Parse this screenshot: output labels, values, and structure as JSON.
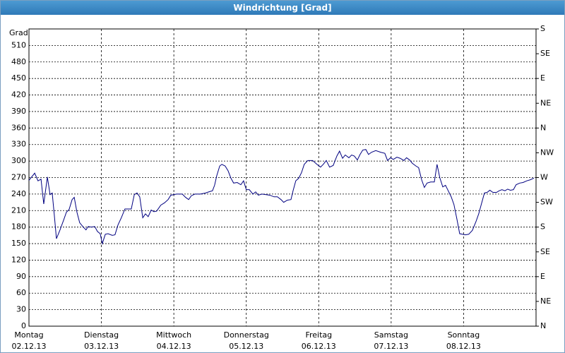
{
  "chart_data": {
    "type": "line",
    "title": "Windrichtung [Grad]",
    "y_label": "Grad",
    "xlim": [
      0,
      168
    ],
    "ylim": [
      0,
      540
    ],
    "y2lim": [
      0,
      540
    ],
    "grid": true,
    "color": "#000080",
    "xticks": [
      {
        "value": 0,
        "label": "Montag",
        "date": "02.12.13"
      },
      {
        "value": 24,
        "label": "Dienstag",
        "date": "03.12.13"
      },
      {
        "value": 48,
        "label": "Mittwoch",
        "date": "04.12.13"
      },
      {
        "value": 72,
        "label": "Donnerstag",
        "date": "05.12.13"
      },
      {
        "value": 96,
        "label": "Freitag",
        "date": "06.12.13"
      },
      {
        "value": 120,
        "label": "Samstag",
        "date": "07.12.13"
      },
      {
        "value": 144,
        "label": "Sonntag",
        "date": "08.12.13"
      }
    ],
    "yticks": [
      0,
      30,
      60,
      90,
      120,
      150,
      180,
      210,
      240,
      270,
      300,
      330,
      360,
      390,
      420,
      450,
      480,
      510
    ],
    "y2ticks": [
      {
        "value": 0,
        "label": "N"
      },
      {
        "value": 45,
        "label": "NE"
      },
      {
        "value": 90,
        "label": "E"
      },
      {
        "value": 135,
        "label": "SE"
      },
      {
        "value": 180,
        "label": "S"
      },
      {
        "value": 225,
        "label": "SW"
      },
      {
        "value": 270,
        "label": "W"
      },
      {
        "value": 315,
        "label": "NW"
      },
      {
        "value": 360,
        "label": "N"
      },
      {
        "value": 405,
        "label": "NE"
      },
      {
        "value": 450,
        "label": "E"
      },
      {
        "value": 495,
        "label": "SE"
      },
      {
        "value": 540,
        "label": "S"
      }
    ],
    "series": [
      {
        "name": "Windrichtung",
        "color": "#000080",
        "x": [
          0,
          1.9,
          3,
          4,
          4.9,
          6.1,
          7,
          7.7,
          8.4,
          9.1,
          10.3,
          11.5,
          12.4,
          13.3,
          14.3,
          15,
          15.9,
          16.8,
          18,
          18.9,
          19.6,
          20.6,
          21.8,
          22.7,
          23.6,
          24.3,
          25.3,
          26.2,
          27.6,
          28.5,
          29.5,
          30.6,
          31.8,
          32.7,
          33.9,
          34.9,
          35.8,
          36.7,
          37.7,
          38.6,
          39.5,
          40.5,
          41.4,
          42.3,
          43.7,
          44.9,
          46.1,
          47,
          48.9,
          50.8,
          51.9,
          52.9,
          53.8,
          55,
          56.8,
          58.5,
          59.6,
          60.8,
          61.5,
          62.2,
          63.2,
          63.9,
          65,
          66,
          66.9,
          67.8,
          69,
          70.2,
          71.1,
          72,
          73,
          74.2,
          75.1,
          76,
          77.2,
          78.4,
          79.8,
          81.2,
          82.3,
          83.5,
          84.4,
          85.6,
          86.8,
          87.5,
          88.4,
          89.4,
          90.3,
          91.2,
          92.4,
          94,
          95.4,
          96.6,
          97.5,
          98.5,
          99.6,
          100.8,
          102,
          102.9,
          103.9,
          104.8,
          106,
          106.9,
          107.8,
          108.8,
          109.7,
          110.6,
          111.6,
          112.5,
          113.5,
          114.9,
          116.5,
          117.9,
          118.8,
          119.8,
          120.7,
          121.9,
          123,
          124.2,
          125.1,
          126.1,
          127,
          128.2,
          129.1,
          130.1,
          131,
          131.9,
          133.1,
          134.3,
          135.2,
          136.1,
          137.1,
          138,
          138.9,
          139.9,
          140.8,
          141.8,
          142.7,
          143.6,
          144.6,
          145.7,
          146.9,
          148.1,
          149,
          149.9,
          150.9,
          151.8,
          152.7,
          153.7,
          154.9,
          155.8,
          156.7,
          157.7,
          158.6,
          159.5,
          160.5,
          161.4,
          162.6,
          163.7,
          164.9,
          166.1,
          167.3
        ],
        "values": [
          265,
          278,
          264,
          267,
          222,
          271,
          239,
          242,
          202,
          159,
          175,
          193,
          207,
          212,
          230,
          234,
          207,
          188,
          180,
          175,
          181,
          180,
          181,
          172,
          168,
          150,
          167,
          168,
          165,
          166,
          184,
          197,
          213,
          213,
          213,
          239,
          242,
          235,
          197,
          204,
          199,
          211,
          208,
          209,
          220,
          224,
          230,
          238,
          240,
          240,
          234,
          230,
          237,
          240,
          240,
          242,
          244,
          246,
          256,
          273,
          291,
          294,
          291,
          282,
          269,
          260,
          261,
          257,
          264,
          248,
          248,
          240,
          244,
          238,
          240,
          239,
          238,
          235,
          235,
          230,
          225,
          229,
          230,
          246,
          264,
          269,
          279,
          294,
          301,
          301,
          294,
          289,
          294,
          301,
          289,
          292,
          309,
          318,
          305,
          311,
          306,
          311,
          309,
          302,
          312,
          320,
          321,
          312,
          316,
          319,
          316,
          314,
          301,
          306,
          303,
          307,
          305,
          301,
          306,
          302,
          296,
          291,
          288,
          266,
          252,
          260,
          262,
          262,
          294,
          270,
          253,
          256,
          246,
          235,
          221,
          194,
          168,
          167,
          166,
          167,
          174,
          190,
          204,
          222,
          242,
          243,
          247,
          243,
          243,
          246,
          248,
          246,
          249,
          247,
          248,
          257,
          260,
          261,
          264,
          266,
          269
        ]
      }
    ]
  }
}
